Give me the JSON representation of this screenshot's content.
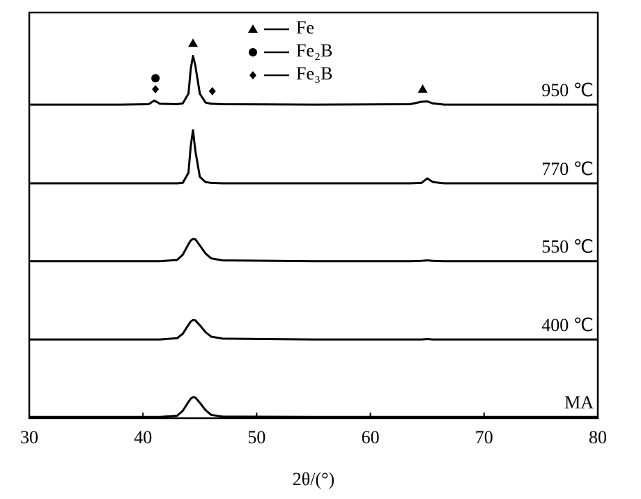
{
  "chart_data": {
    "type": "line",
    "x_label": "2θ/(°)",
    "x": [
      30,
      38,
      40.5,
      41,
      41.5,
      43,
      43.5,
      44,
      44.2,
      44.4,
      44.6,
      45,
      45.5,
      46,
      47,
      55,
      63.5,
      64.5,
      65,
      65.5,
      66.5,
      80
    ],
    "series": [
      {
        "name": "MA",
        "color": "#000000",
        "values": [
          0.3,
          0.3,
          0.3,
          0.3,
          0.3,
          0.6,
          1.8,
          4.0,
          4.8,
          5.2,
          5.1,
          3.8,
          2.0,
          0.8,
          0.4,
          0.3,
          0.3,
          0.3,
          0.3,
          0.3,
          0.3,
          0.3
        ]
      },
      {
        "name": "400 ℃",
        "color": "#000000",
        "values": [
          19.4,
          19.4,
          19.4,
          19.4,
          19.4,
          19.7,
          20.8,
          23.0,
          23.8,
          24.2,
          24.1,
          22.9,
          21.2,
          20.1,
          19.6,
          19.4,
          19.4,
          19.4,
          19.5,
          19.4,
          19.4,
          19.4
        ]
      },
      {
        "name": "550 ℃",
        "color": "#000000",
        "values": [
          38.7,
          38.7,
          38.7,
          38.7,
          38.7,
          39.0,
          40.3,
          42.9,
          43.8,
          44.2,
          44.1,
          42.6,
          40.6,
          39.4,
          38.9,
          38.7,
          38.7,
          38.8,
          38.9,
          38.8,
          38.7,
          38.7
        ]
      },
      {
        "name": "770 ℃",
        "color": "#000000",
        "values": [
          57.9,
          57.9,
          57.9,
          57.9,
          57.9,
          57.9,
          58.0,
          60.5,
          67.0,
          71.0,
          66.0,
          59.5,
          58.2,
          58.0,
          57.9,
          57.9,
          57.9,
          58.0,
          59.1,
          58.2,
          57.9,
          57.9
        ]
      },
      {
        "name": "950 ℃",
        "color": "#000000",
        "values": [
          77.3,
          77.3,
          77.4,
          78.3,
          77.5,
          77.4,
          77.6,
          80.0,
          86.0,
          89.3,
          87.0,
          80.0,
          77.8,
          77.5,
          77.4,
          77.3,
          77.4,
          78.0,
          78.1,
          77.6,
          77.3,
          77.3
        ]
      }
    ],
    "phases": [
      {
        "name": "Fe",
        "symbol": "triangle"
      },
      {
        "name": "Fe₂B",
        "symbol": "circle"
      },
      {
        "name": "Fe₃B",
        "symbol": "diamond"
      }
    ],
    "markers": [
      {
        "phase": 0,
        "x": 44.4,
        "y": 92.4
      },
      {
        "phase": 1,
        "x": 41.1,
        "y": 83.8
      },
      {
        "phase": 2,
        "x": 41.1,
        "y": 81.1
      },
      {
        "phase": 2,
        "x": 46.1,
        "y": 80.6
      },
      {
        "phase": 0,
        "x": 64.6,
        "y": 81.1
      }
    ],
    "legend": "upper center",
    "xlim": [
      30,
      80
    ],
    "xticks": [
      30,
      40,
      50,
      60,
      70,
      80
    ],
    "ylim": [
      0,
      100
    ]
  }
}
